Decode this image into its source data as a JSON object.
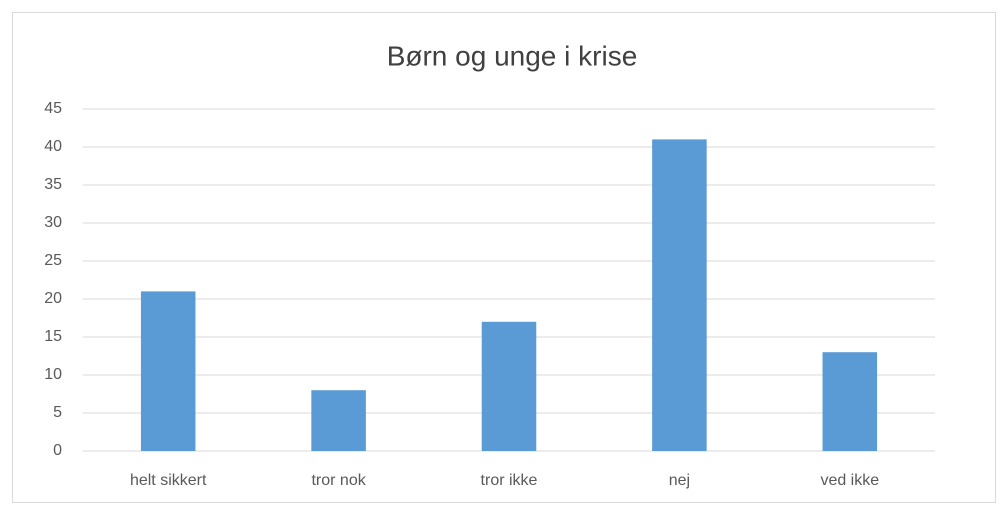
{
  "chart_data": {
    "type": "bar",
    "title": "Børn og unge i krise",
    "categories": [
      "helt sikkert",
      "tror nok",
      "tror ikke",
      "nej",
      "ved ikke"
    ],
    "values": [
      21,
      8,
      17,
      41,
      13
    ],
    "color": "#5b9bd5",
    "ylim": [
      0,
      45
    ],
    "yticks": [
      0,
      5,
      10,
      15,
      20,
      25,
      30,
      35,
      40,
      45
    ],
    "grid": true
  }
}
